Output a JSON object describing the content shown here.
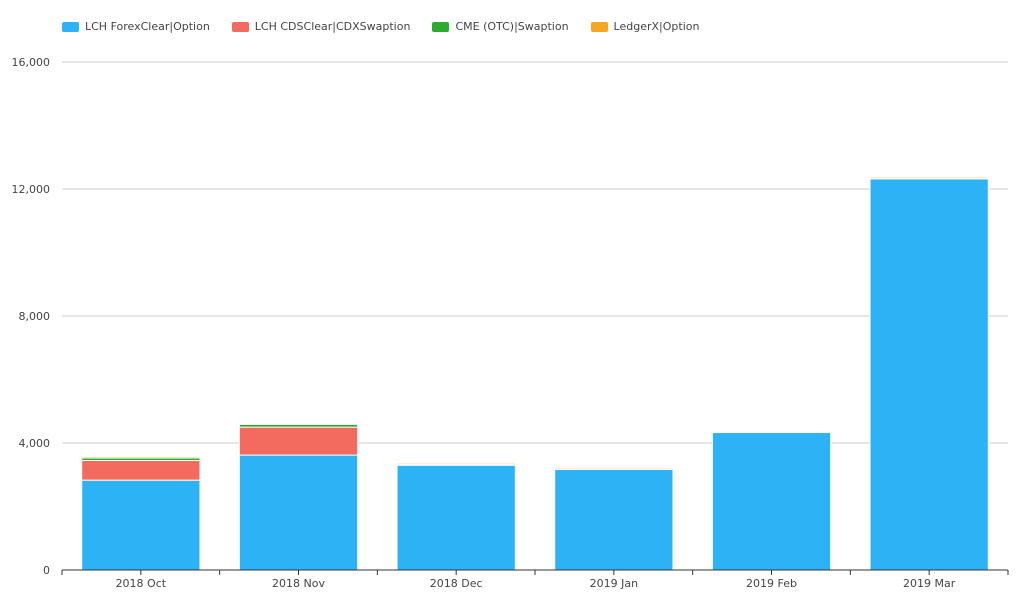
{
  "chart_data": {
    "type": "bar",
    "stacked": true,
    "categories": [
      "2018 Oct",
      "2018 Nov",
      "2018 Dec",
      "2019 Jan",
      "2019 Feb",
      "2019 Mar"
    ],
    "series": [
      {
        "name": "LCH ForexClear|Option",
        "color": "#2db3f5",
        "values": [
          2830,
          3620,
          3300,
          3170,
          4330,
          12320
        ]
      },
      {
        "name": "LCH CDSClear|CDXSwaption",
        "color": "#f26b5e",
        "values": [
          620,
          880,
          0,
          0,
          0,
          0
        ]
      },
      {
        "name": "CME (OTC)|Swaption",
        "color": "#2eaa2e",
        "values": [
          80,
          90,
          20,
          20,
          20,
          20
        ]
      },
      {
        "name": "LedgerX|Option",
        "color": "#f5a623",
        "values": [
          40,
          20,
          40,
          40,
          20,
          40
        ]
      }
    ],
    "yticks": [
      0,
      4000,
      8000,
      12000,
      16000
    ],
    "ytick_labels": [
      "0",
      "4,000",
      "8,000",
      "12,000",
      "16,000"
    ],
    "ylim": [
      0,
      16000
    ],
    "xlabel": "",
    "ylabel": "",
    "grid": true,
    "legend_position": "top-left"
  }
}
